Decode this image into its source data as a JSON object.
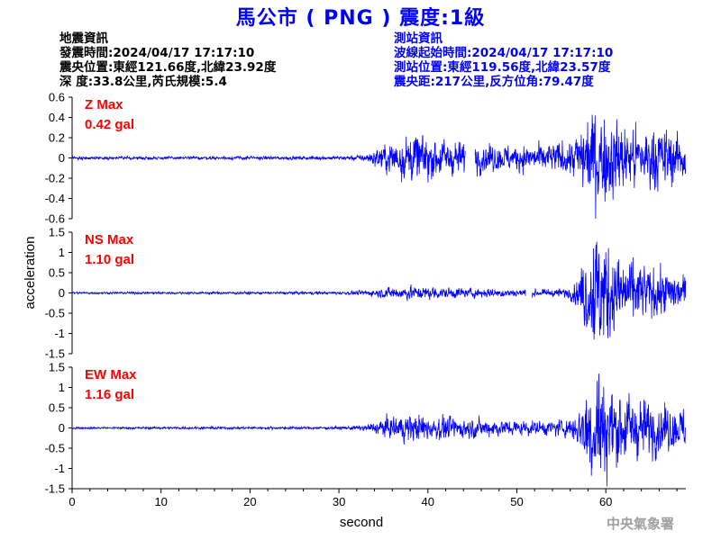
{
  "header": {
    "title": "馬公市 ( PNG ) 震度:1級"
  },
  "quake_info": {
    "heading": "地震資訊",
    "origin_time": "發震時間:2024/04/17 17:17:10",
    "epicenter": "震央位置:東經121.66度,北緯23.92度",
    "depth_magnitude": "深 度:33.8公里,芮氏規模:5.4"
  },
  "station_info": {
    "heading": "測站資訊",
    "wave_start": "波線起始時間:2024/04/17 17:17:10",
    "location": "測站位置:東經119.56度,北緯23.57度",
    "distance": "震央距:217公里,反方位角:79.47度"
  },
  "footer": {
    "agency": "中央氣象署"
  },
  "chart_data": {
    "type": "line",
    "xlabel": "second",
    "ylabel": "acceleration",
    "xlim": [
      0,
      69
    ],
    "xticks": [
      "0",
      "10",
      "20",
      "30",
      "40",
      "50",
      "60"
    ],
    "line_color": "#0000ff",
    "label_color": "#ff0000",
    "panels": [
      {
        "channel": "Z",
        "max_label": "Z Max",
        "max_value": "0.42 gal",
        "ylim": [
          -0.6,
          0.6
        ],
        "yticks": [
          "0.6",
          "0.4",
          "0.2",
          "0",
          "-0.2",
          "-0.4",
          "-0.6"
        ],
        "noise_floor": 0.007,
        "envelope": [
          [
            0,
            0.008
          ],
          [
            30,
            0.01
          ],
          [
            33,
            0.02
          ],
          [
            34.5,
            0.06
          ],
          [
            35.5,
            0.09
          ],
          [
            37,
            0.12
          ],
          [
            38,
            0.14
          ],
          [
            40,
            0.12
          ],
          [
            42,
            0.1
          ],
          [
            44,
            0.09
          ],
          [
            46,
            0.08
          ],
          [
            50,
            0.07
          ],
          [
            54,
            0.08
          ],
          [
            56,
            0.1
          ],
          [
            57,
            0.16
          ],
          [
            58,
            0.24
          ],
          [
            59,
            0.3
          ],
          [
            60,
            0.25
          ],
          [
            62,
            0.2
          ],
          [
            64,
            0.17
          ],
          [
            66,
            0.18
          ],
          [
            67,
            0.16
          ],
          [
            68.6,
            0.14
          ]
        ],
        "gaps": [
          [
            44.2,
            45.3
          ]
        ],
        "peaks": [
          [
            58.8,
            0.42
          ],
          [
            59.6,
            -0.3
          ]
        ]
      },
      {
        "channel": "NS",
        "max_label": "NS Max",
        "max_value": "1.10 gal",
        "ylim": [
          -1.5,
          1.5
        ],
        "yticks": [
          "1.5",
          "1",
          "0.5",
          "0",
          "-0.5",
          "-1",
          "-1.5"
        ],
        "noise_floor": 0.012,
        "envelope": [
          [
            0,
            0.015
          ],
          [
            30,
            0.02
          ],
          [
            33,
            0.035
          ],
          [
            34.5,
            0.06
          ],
          [
            36,
            0.09
          ],
          [
            38,
            0.1
          ],
          [
            40,
            0.09
          ],
          [
            44,
            0.07
          ],
          [
            48,
            0.06
          ],
          [
            52,
            0.05
          ],
          [
            54,
            0.05
          ],
          [
            56,
            0.08
          ],
          [
            57,
            0.25
          ],
          [
            58,
            0.6
          ],
          [
            59,
            0.9
          ],
          [
            60,
            0.75
          ],
          [
            61,
            0.55
          ],
          [
            63,
            0.45
          ],
          [
            65,
            0.35
          ],
          [
            67,
            0.3
          ],
          [
            68.6,
            0.25
          ]
        ],
        "gaps": [
          [
            51.0,
            51.7
          ]
        ],
        "peaks": [
          [
            58.6,
            1.1
          ],
          [
            59.3,
            -1.05
          ]
        ]
      },
      {
        "channel": "EW",
        "max_label": "EW Max",
        "max_value": "1.16 gal",
        "ylim": [
          -1.5,
          1.5
        ],
        "yticks": [
          "1.5",
          "1",
          "0.5",
          "0",
          "-0.5",
          "-1",
          "-1.5"
        ],
        "noise_floor": 0.012,
        "envelope": [
          [
            0,
            0.015
          ],
          [
            30,
            0.02
          ],
          [
            33,
            0.04
          ],
          [
            34.5,
            0.1
          ],
          [
            36,
            0.16
          ],
          [
            38,
            0.2
          ],
          [
            40,
            0.18
          ],
          [
            44,
            0.14
          ],
          [
            48,
            0.12
          ],
          [
            52,
            0.1
          ],
          [
            54,
            0.1
          ],
          [
            56,
            0.14
          ],
          [
            57,
            0.3
          ],
          [
            58,
            0.65
          ],
          [
            59,
            0.85
          ],
          [
            60,
            0.7
          ],
          [
            61,
            0.55
          ],
          [
            63,
            0.45
          ],
          [
            65,
            0.38
          ],
          [
            67,
            0.32
          ],
          [
            68.6,
            0.28
          ]
        ],
        "gaps": [],
        "peaks": [
          [
            59.0,
            1.16
          ],
          [
            58.2,
            -0.85
          ]
        ]
      }
    ]
  }
}
